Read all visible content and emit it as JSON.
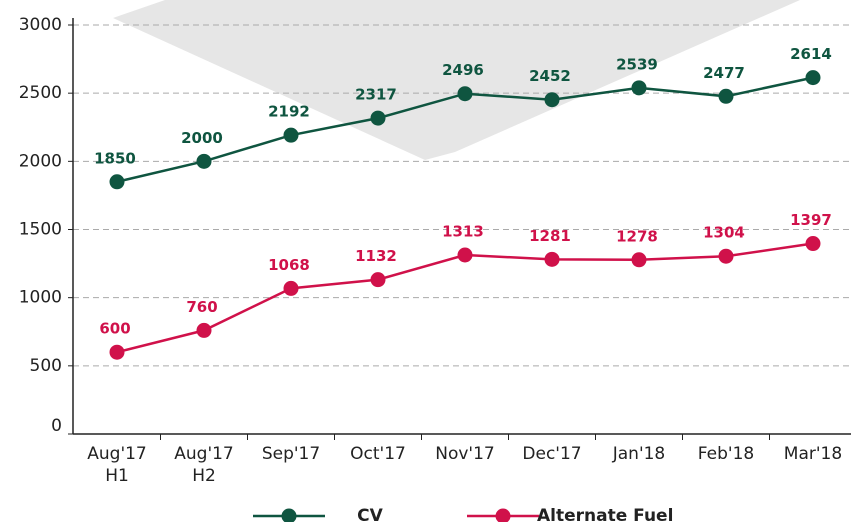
{
  "chart_data": {
    "type": "line",
    "categories": [
      "Aug'17 H1",
      "Aug'17 H2",
      "Sep'17",
      "Oct'17",
      "Nov'17",
      "Dec'17",
      "Jan'18",
      "Feb'18",
      "Mar'18"
    ],
    "series": [
      {
        "name": "CV",
        "color": "#0f5540",
        "values": [
          1850,
          2000,
          2192,
          2317,
          2496,
          2452,
          2539,
          2477,
          2614
        ]
      },
      {
        "name": "Alternate Fuel",
        "color": "#d0114a",
        "values": [
          600,
          760,
          1068,
          1132,
          1313,
          1281,
          1278,
          1304,
          1397
        ]
      }
    ],
    "ylim": [
      0,
      3000
    ],
    "yticks": [
      0,
      500,
      1000,
      1500,
      2000,
      2500,
      3000
    ],
    "grid": true,
    "legend": "bottom"
  }
}
